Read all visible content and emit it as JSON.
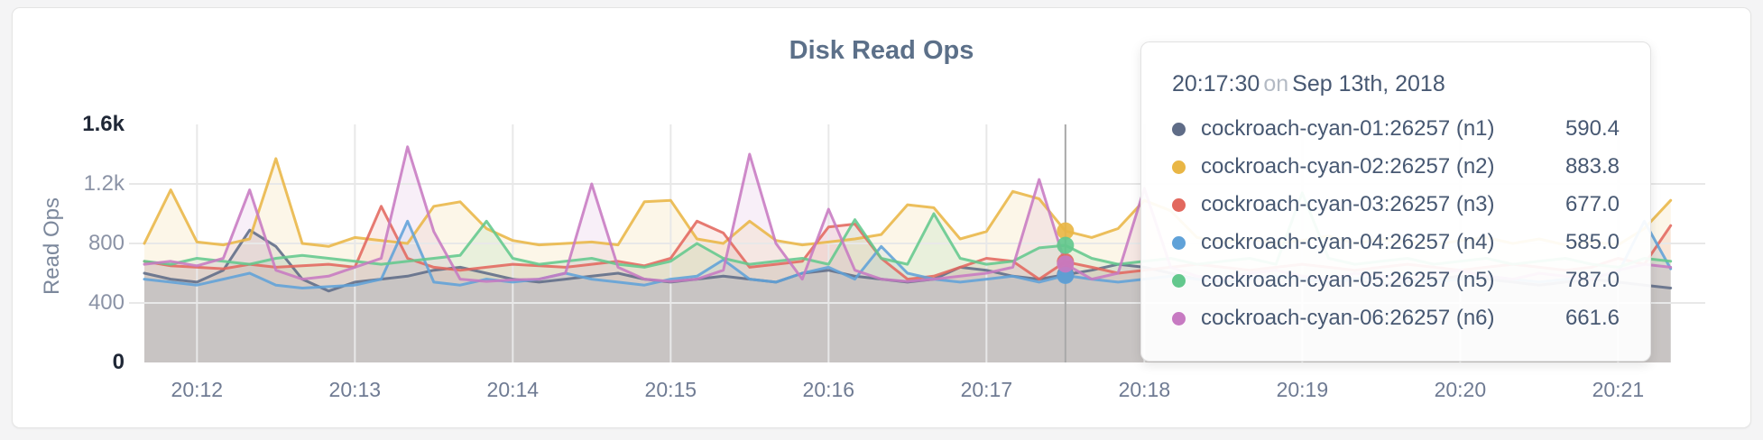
{
  "page": {
    "background": "#f4f4f5",
    "card_background": "#ffffff"
  },
  "chart_data": {
    "type": "line",
    "title": "Disk Read Ops",
    "ylabel": "Read Ops",
    "xlabel": "",
    "ylim": [
      0,
      1600
    ],
    "grid": true,
    "legend_position": "tooltip-only",
    "x_start_label": "20:11:40",
    "sample_interval_s": 10,
    "x_ticks": [
      {
        "label": "20:12",
        "offset_s": 20
      },
      {
        "label": "20:13",
        "offset_s": 80
      },
      {
        "label": "20:14",
        "offset_s": 140
      },
      {
        "label": "20:15",
        "offset_s": 200
      },
      {
        "label": "20:16",
        "offset_s": 260
      },
      {
        "label": "20:17",
        "offset_s": 320
      },
      {
        "label": "20:18",
        "offset_s": 380
      },
      {
        "label": "20:19",
        "offset_s": 440
      },
      {
        "label": "20:20",
        "offset_s": 500
      },
      {
        "label": "20:21",
        "offset_s": 560
      }
    ],
    "y_ticks": [
      {
        "label": "0",
        "value": 0,
        "major": true
      },
      {
        "label": "400",
        "value": 400,
        "major": false
      },
      {
        "label": "800",
        "value": 800,
        "major": false
      },
      {
        "label": "1.2k",
        "value": 1200,
        "major": false
      },
      {
        "label": "1.6k",
        "value": 1600,
        "major": true
      }
    ],
    "series": [
      {
        "name": "cockroach-cyan-01:26257 (n1)",
        "node": "n1",
        "color": "#5f6c87",
        "values": [
          600,
          560,
          540,
          620,
          890,
          780,
          560,
          480,
          540,
          560,
          580,
          620,
          640,
          600,
          560,
          540,
          560,
          580,
          600,
          560,
          540,
          560,
          580,
          560,
          540,
          600,
          620,
          580,
          560,
          540,
          560,
          640,
          620,
          580,
          560,
          590.4,
          620,
          660,
          640,
          600,
          560,
          540,
          560,
          580,
          560,
          540,
          560,
          520,
          540,
          560,
          580,
          560,
          540,
          520,
          540,
          560,
          540,
          520,
          500
        ]
      },
      {
        "name": "cockroach-cyan-02:26257 (n2)",
        "node": "n2",
        "color": "#e9b645",
        "values": [
          800,
          1160,
          810,
          790,
          830,
          1370,
          800,
          780,
          840,
          820,
          800,
          1050,
          1080,
          900,
          820,
          790,
          800,
          810,
          790,
          1080,
          1090,
          830,
          800,
          950,
          820,
          790,
          810,
          830,
          860,
          1060,
          1040,
          830,
          880,
          1150,
          1100,
          883.8,
          840,
          900,
          1090,
          1020,
          840,
          810,
          830,
          800,
          820,
          850,
          800,
          830,
          810,
          790,
          820,
          840,
          800,
          830,
          790,
          810,
          790,
          900,
          1090
        ]
      },
      {
        "name": "cockroach-cyan-03:26257 (n3)",
        "node": "n3",
        "color": "#e2685e",
        "values": [
          680,
          650,
          640,
          630,
          660,
          640,
          650,
          660,
          640,
          1050,
          700,
          640,
          620,
          640,
          660,
          650,
          640,
          660,
          680,
          650,
          700,
          950,
          870,
          640,
          660,
          680,
          910,
          930,
          700,
          560,
          580,
          640,
          700,
          680,
          560,
          677,
          640,
          600,
          620,
          640,
          660,
          640,
          620,
          640,
          660,
          640,
          620,
          640,
          660,
          640,
          620,
          640,
          660,
          640,
          620,
          640,
          700,
          660,
          920
        ]
      },
      {
        "name": "cockroach-cyan-04:26257 (n4)",
        "node": "n4",
        "color": "#60a2d8",
        "values": [
          560,
          540,
          520,
          560,
          600,
          520,
          500,
          510,
          520,
          560,
          950,
          540,
          520,
          560,
          540,
          560,
          600,
          560,
          540,
          520,
          560,
          580,
          690,
          560,
          540,
          600,
          640,
          560,
          780,
          600,
          560,
          540,
          560,
          580,
          540,
          585,
          560,
          540,
          560,
          580,
          560,
          540,
          560,
          580,
          560,
          540,
          560,
          580,
          560,
          540,
          560,
          580,
          560,
          540,
          560,
          580,
          600,
          950,
          630
        ]
      },
      {
        "name": "cockroach-cyan-05:26257 (n5)",
        "node": "n5",
        "color": "#63c88d",
        "values": [
          680,
          660,
          700,
          680,
          660,
          700,
          720,
          700,
          680,
          660,
          680,
          700,
          720,
          950,
          700,
          660,
          680,
          700,
          660,
          640,
          680,
          800,
          700,
          660,
          680,
          700,
          660,
          960,
          700,
          660,
          1000,
          700,
          660,
          680,
          770,
          787,
          700,
          660,
          680,
          700,
          660,
          680,
          700,
          660,
          1140,
          700,
          660,
          680,
          700,
          660,
          680,
          700,
          660,
          680,
          700,
          660,
          640,
          700,
          680
        ]
      },
      {
        "name": "cockroach-cyan-06:26257 (n6)",
        "node": "n6",
        "color": "#c77ac2",
        "values": [
          660,
          680,
          650,
          700,
          1160,
          620,
          560,
          580,
          640,
          700,
          1450,
          880,
          560,
          545,
          555,
          560,
          600,
          1200,
          640,
          560,
          545,
          560,
          620,
          1400,
          800,
          560,
          1030,
          620,
          560,
          545,
          560,
          580,
          600,
          640,
          1230,
          661.6,
          560,
          600,
          1170,
          640,
          580,
          560,
          600,
          620,
          580,
          560,
          600,
          580,
          560,
          600,
          620,
          580,
          560,
          600,
          580,
          560,
          620,
          660,
          640
        ]
      }
    ],
    "hover": {
      "time": "20:17:30",
      "connector": "on",
      "date": "Sep 13th, 2018",
      "offset_s": 350,
      "value_labels": [
        "590.4",
        "883.8",
        "677.0",
        "585.0",
        "787.0",
        "661.6"
      ]
    }
  }
}
